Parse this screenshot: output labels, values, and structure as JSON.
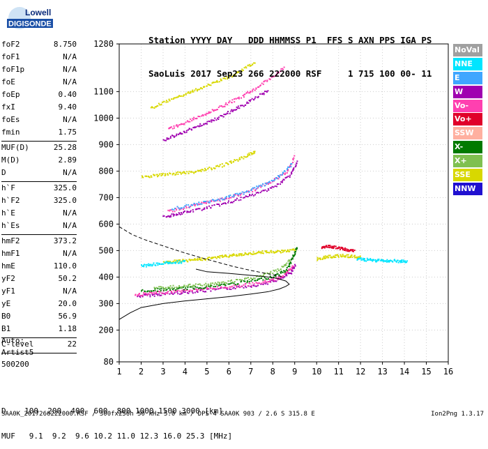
{
  "logo": {
    "top": "Lowell",
    "bottom": "DIGISONDE"
  },
  "header": {
    "line1": "Station YYYY DAY   DDD HHMMSS P1  FFS S AXN PPS IGA PS",
    "line2": "SaoLuis 2017 Sep23 266 222000 RSF     1 715 100 00- 11"
  },
  "params": [
    {
      "label": "foF2",
      "value": "8.750"
    },
    {
      "label": "foF1",
      "value": "N/A"
    },
    {
      "label": "foF1p",
      "value": "N/A"
    },
    {
      "label": "foE",
      "value": "N/A"
    },
    {
      "label": "foEp",
      "value": "0.40"
    },
    {
      "label": "fxI",
      "value": "9.40"
    },
    {
      "label": "foEs",
      "value": "N/A"
    },
    {
      "label": "fmin",
      "value": "1.75"
    },
    {
      "sep": true
    },
    {
      "label": "MUF(D)",
      "value": "25.28"
    },
    {
      "label": "M(D)",
      "value": "2.89"
    },
    {
      "label": "D",
      "value": "N/A"
    },
    {
      "sep": true
    },
    {
      "label": "h`F",
      "value": "325.0"
    },
    {
      "label": "h`F2",
      "value": "325.0"
    },
    {
      "label": "h`E",
      "value": "N/A"
    },
    {
      "label": "h`Es",
      "value": "N/A"
    },
    {
      "sep": true
    },
    {
      "label": "hmF2",
      "value": "373.2"
    },
    {
      "label": "hmF1",
      "value": "N/A"
    },
    {
      "label": "hmE",
      "value": "110.0"
    },
    {
      "label": "yF2",
      "value": "50.2"
    },
    {
      "label": "yF1",
      "value": "N/A"
    },
    {
      "label": "yE",
      "value": "20.0"
    },
    {
      "label": "B0",
      "value": "56.9"
    },
    {
      "label": "B1",
      "value": "1.18"
    },
    {
      "sep": true
    },
    {
      "label": "C-level",
      "value": "22"
    },
    {
      "sep": true
    }
  ],
  "extra": {
    "line1": "Auto:",
    "line2": "Artist5",
    "line3": "500200"
  },
  "legend": [
    {
      "label": "NoVal",
      "color": "#a0a0a0"
    },
    {
      "label": "NNE",
      "color": "#00e5ff"
    },
    {
      "label": "E",
      "color": "#3fa6ff"
    },
    {
      "label": "W",
      "color": "#a000b0"
    },
    {
      "label": "Vo-",
      "color": "#ff40b0"
    },
    {
      "label": "Vo+",
      "color": "#e0002a"
    },
    {
      "label": "SSW",
      "color": "#ffb0a0"
    },
    {
      "label": "X-",
      "color": "#007a00"
    },
    {
      "label": "X+",
      "color": "#7fc050"
    },
    {
      "label": "SSE",
      "color": "#d8d800"
    },
    {
      "label": "NNW",
      "color": "#2010d0"
    }
  ],
  "bottom": {
    "d_line": "D    100  200  400  600  800 1000 1500 3000 [km]",
    "muf_line": "MUF   9.1  9.2  9.6 10.2 11.0 12.3 16.0 25.3 [MHz]"
  },
  "footer": "SAA0K_2017266222000.RSF / 300fx256h 50 kHz 5.0 km / DPS-4 SAA0K 903 / 2.6 S 315.8 E",
  "version": "Ion2Png 1.3.17",
  "chart_data": {
    "type": "scatter",
    "x_ticks": [
      "1",
      "2",
      "3",
      "4",
      "5",
      "6",
      "7",
      "8",
      "9",
      "10",
      "11",
      "12",
      "13",
      "14",
      "15",
      "16"
    ],
    "y_ticks": [
      "80",
      "200",
      "300",
      "400",
      "500",
      "600",
      "700",
      "800",
      "900",
      "1000",
      "1100",
      "1280"
    ],
    "xlim": [
      1,
      16
    ],
    "ylim": [
      80,
      1280
    ],
    "grid": "dotted",
    "series": [
      {
        "color": "#a000b0",
        "pts": [
          [
            1.8,
            330
          ],
          [
            2.5,
            335
          ],
          [
            3.2,
            340
          ],
          [
            4.0,
            345
          ],
          [
            5.0,
            352
          ],
          [
            6.0,
            360
          ],
          [
            7.0,
            370
          ],
          [
            7.8,
            382
          ],
          [
            8.4,
            398
          ],
          [
            8.8,
            420
          ],
          [
            9.0,
            450
          ]
        ]
      },
      {
        "color": "#ff40b0",
        "pts": [
          [
            1.7,
            335
          ],
          [
            2.3,
            340
          ],
          [
            3.0,
            345
          ],
          [
            3.8,
            350
          ],
          [
            4.6,
            356
          ],
          [
            5.5,
            362
          ],
          [
            6.5,
            370
          ],
          [
            7.4,
            380
          ],
          [
            8.1,
            395
          ],
          [
            8.6,
            415
          ],
          [
            8.9,
            445
          ]
        ]
      },
      {
        "color": "#007a00",
        "pts": [
          [
            2.0,
            350
          ],
          [
            2.8,
            355
          ],
          [
            3.6,
            358
          ],
          [
            4.4,
            362
          ],
          [
            5.2,
            368
          ],
          [
            6.2,
            378
          ],
          [
            7.2,
            390
          ],
          [
            8.0,
            405
          ],
          [
            8.6,
            428
          ],
          [
            8.9,
            480
          ],
          [
            9.1,
            520
          ]
        ]
      },
      {
        "color": "#7fc050",
        "pts": [
          [
            2.6,
            360
          ],
          [
            3.4,
            365
          ],
          [
            4.2,
            370
          ],
          [
            5.0,
            375
          ],
          [
            5.8,
            382
          ],
          [
            6.8,
            395
          ],
          [
            7.6,
            410
          ],
          [
            8.3,
            432
          ],
          [
            8.8,
            470
          ]
        ]
      },
      {
        "color": "#a000b0",
        "pts": [
          [
            3.0,
            630
          ],
          [
            3.6,
            640
          ],
          [
            4.2,
            650
          ],
          [
            5.0,
            665
          ],
          [
            5.8,
            680
          ],
          [
            6.6,
            700
          ],
          [
            7.4,
            722
          ],
          [
            8.2,
            750
          ],
          [
            8.8,
            790
          ],
          [
            9.1,
            840
          ]
        ]
      },
      {
        "color": "#ff40b0",
        "pts": [
          [
            3.2,
            650
          ],
          [
            4.0,
            665
          ],
          [
            4.8,
            680
          ],
          [
            5.6,
            695
          ],
          [
            6.4,
            712
          ],
          [
            7.2,
            735
          ],
          [
            8.0,
            765
          ],
          [
            8.6,
            800
          ],
          [
            9.0,
            860
          ]
        ]
      },
      {
        "color": "#3fa6ff",
        "pts": [
          [
            3.4,
            660
          ],
          [
            4.3,
            675
          ],
          [
            5.2,
            690
          ],
          [
            6.0,
            705
          ],
          [
            6.8,
            725
          ],
          [
            7.6,
            752
          ],
          [
            8.3,
            785
          ],
          [
            8.9,
            830
          ]
        ]
      },
      {
        "color": "#d8d800",
        "pts": [
          [
            2.0,
            780
          ],
          [
            2.6,
            785
          ],
          [
            3.2,
            790
          ],
          [
            3.8,
            795
          ],
          [
            4.4,
            800
          ],
          [
            5.0,
            810
          ],
          [
            5.6,
            822
          ],
          [
            6.2,
            840
          ],
          [
            6.8,
            860
          ],
          [
            7.2,
            878
          ]
        ]
      },
      {
        "color": "#a000b0",
        "pts": [
          [
            3.0,
            920
          ],
          [
            3.6,
            940
          ],
          [
            4.2,
            960
          ],
          [
            4.8,
            980
          ],
          [
            5.4,
            1000
          ],
          [
            6.0,
            1025
          ],
          [
            6.6,
            1050
          ],
          [
            7.2,
            1080
          ],
          [
            7.8,
            1110
          ]
        ]
      },
      {
        "color": "#ff40b0",
        "pts": [
          [
            3.2,
            960
          ],
          [
            3.8,
            980
          ],
          [
            4.4,
            1000
          ],
          [
            5.0,
            1022
          ],
          [
            5.6,
            1045
          ],
          [
            6.2,
            1068
          ],
          [
            6.8,
            1095
          ],
          [
            7.4,
            1125
          ],
          [
            8.0,
            1160
          ],
          [
            8.5,
            1195
          ]
        ]
      },
      {
        "color": "#d8d800",
        "pts": [
          [
            2.4,
            1040
          ],
          [
            3.0,
            1060
          ],
          [
            3.6,
            1080
          ],
          [
            4.2,
            1100
          ],
          [
            4.8,
            1120
          ],
          [
            5.4,
            1140
          ],
          [
            6.0,
            1160
          ],
          [
            6.6,
            1185
          ],
          [
            7.2,
            1215
          ]
        ]
      },
      {
        "color": "#d8d800",
        "pts": [
          [
            3.0,
            458
          ],
          [
            3.5,
            462
          ],
          [
            4.0,
            465
          ],
          [
            4.5,
            468
          ],
          [
            5.0,
            472
          ],
          [
            5.5,
            478
          ],
          [
            6.0,
            482
          ],
          [
            6.5,
            488
          ],
          [
            7.0,
            492
          ],
          [
            7.5,
            496
          ],
          [
            8.0,
            498
          ],
          [
            8.5,
            500
          ],
          [
            9.0,
            505
          ]
        ]
      },
      {
        "color": "#00e5ff",
        "pts": [
          [
            2.0,
            445
          ],
          [
            2.5,
            450
          ],
          [
            3.0,
            455
          ],
          [
            3.5,
            458
          ],
          [
            4.0,
            462
          ]
        ]
      },
      {
        "color": "#d8d800",
        "pts": [
          [
            10.0,
            470
          ],
          [
            10.4,
            478
          ],
          [
            10.8,
            482
          ],
          [
            11.2,
            484
          ],
          [
            11.6,
            480
          ],
          [
            12.0,
            478
          ]
        ]
      },
      {
        "color": "#e0002a",
        "pts": [
          [
            10.2,
            512
          ],
          [
            10.5,
            518
          ],
          [
            10.8,
            515
          ],
          [
            11.1,
            510
          ],
          [
            11.4,
            505
          ],
          [
            11.7,
            500
          ]
        ]
      },
      {
        "color": "#00e5ff",
        "pts": [
          [
            11.8,
            470
          ],
          [
            12.2,
            468
          ],
          [
            12.6,
            466
          ],
          [
            13.0,
            465
          ],
          [
            13.4,
            464
          ],
          [
            13.8,
            462
          ],
          [
            14.1,
            460
          ]
        ]
      }
    ],
    "profile": [
      [
        1.0,
        240
      ],
      [
        1.5,
        265
      ],
      [
        2.0,
        285
      ],
      [
        3.0,
        300
      ],
      [
        4.0,
        310
      ],
      [
        5.0,
        318
      ],
      [
        6.0,
        326
      ],
      [
        7.0,
        336
      ],
      [
        7.8,
        345
      ],
      [
        8.3,
        355
      ],
      [
        8.6,
        365
      ],
      [
        8.75,
        373
      ],
      [
        8.6,
        385
      ],
      [
        8.2,
        395
      ],
      [
        7.6,
        402
      ],
      [
        6.8,
        408
      ],
      [
        6.0,
        414
      ],
      [
        5.0,
        420
      ],
      [
        4.5,
        430
      ]
    ],
    "dashed": [
      [
        1.0,
        590
      ],
      [
        1.6,
        560
      ],
      [
        2.2,
        540
      ],
      [
        3.0,
        518
      ],
      [
        3.8,
        496
      ],
      [
        4.6,
        476
      ],
      [
        5.4,
        458
      ],
      [
        6.2,
        440
      ],
      [
        7.0,
        425
      ],
      [
        7.8,
        412
      ],
      [
        8.5,
        400
      ]
    ]
  }
}
